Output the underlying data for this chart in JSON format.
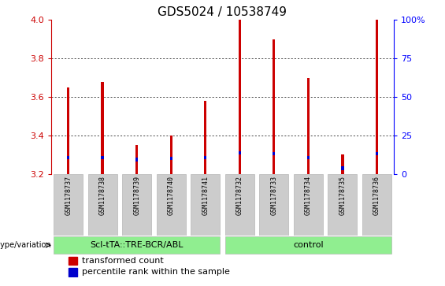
{
  "title": "GDS5024 / 10538749",
  "samples": [
    "GSM1178737",
    "GSM1178738",
    "GSM1178739",
    "GSM1178740",
    "GSM1178741",
    "GSM1178732",
    "GSM1178733",
    "GSM1178734",
    "GSM1178735",
    "GSM1178736"
  ],
  "red_values": [
    3.65,
    3.68,
    3.35,
    3.4,
    3.58,
    4.0,
    3.9,
    3.7,
    3.3,
    4.0
  ],
  "blue_values": [
    3.285,
    3.285,
    3.275,
    3.28,
    3.285,
    3.31,
    3.305,
    3.285,
    3.23,
    3.305
  ],
  "base": 3.2,
  "ylim": [
    3.2,
    4.0
  ],
  "right_ylim": [
    0,
    100
  ],
  "right_yticks": [
    0,
    25,
    50,
    75,
    100
  ],
  "right_yticklabels": [
    "0",
    "25",
    "50",
    "75",
    "100%"
  ],
  "left_yticks": [
    3.2,
    3.4,
    3.6,
    3.8,
    4.0
  ],
  "group1_label": "Scl-tTA::TRE-BCR/ABL",
  "group2_label": "control",
  "group1_indices": [
    0,
    1,
    2,
    3,
    4
  ],
  "group2_indices": [
    5,
    6,
    7,
    8,
    9
  ],
  "bar_width": 0.08,
  "blue_bar_height": 0.018,
  "red_color": "#cc0000",
  "blue_color": "#0000cc",
  "group_bg": "#90ee90",
  "tick_label_bg": "#cccccc",
  "legend_red": "transformed count",
  "legend_blue": "percentile rank within the sample",
  "genotype_label": "genotype/variation",
  "title_fontsize": 11,
  "tick_fontsize": 8,
  "sample_fontsize": 6,
  "group_fontsize": 8,
  "legend_fontsize": 8
}
